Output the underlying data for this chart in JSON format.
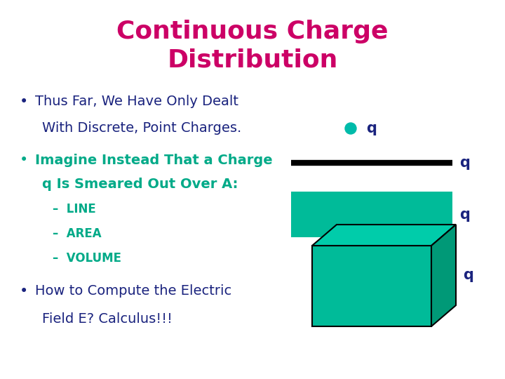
{
  "title_line1": "Continuous Charge",
  "title_line2": "Distribution",
  "title_color": "#CC0066",
  "title_fontsize": 26,
  "background_color": "#FFFFFF",
  "bullet_color": "#1A237E",
  "teal_color": "#00AA88",
  "bullet1_line1": "Thus Far, We Have Only Dealt",
  "bullet1_line2": "With Discrete, Point Charges.",
  "bullet2_line1": "Imagine Instead That a Charge",
  "bullet2_line2": "q Is Smeared Out Over A:",
  "sub1": "–  LINE",
  "sub2": "–  AREA",
  "sub3": "–  VOLUME",
  "bullet3_line1": "How to Compute the Electric",
  "bullet3_line2": "Field E? Calculus!!!",
  "q_label": "q",
  "dot_color": "#00BBAA",
  "line_color": "#000000",
  "rect_color": "#00BB99",
  "cube_face_color": "#00BB99",
  "cube_top_color": "#00CCAA",
  "cube_side_color": "#009977"
}
